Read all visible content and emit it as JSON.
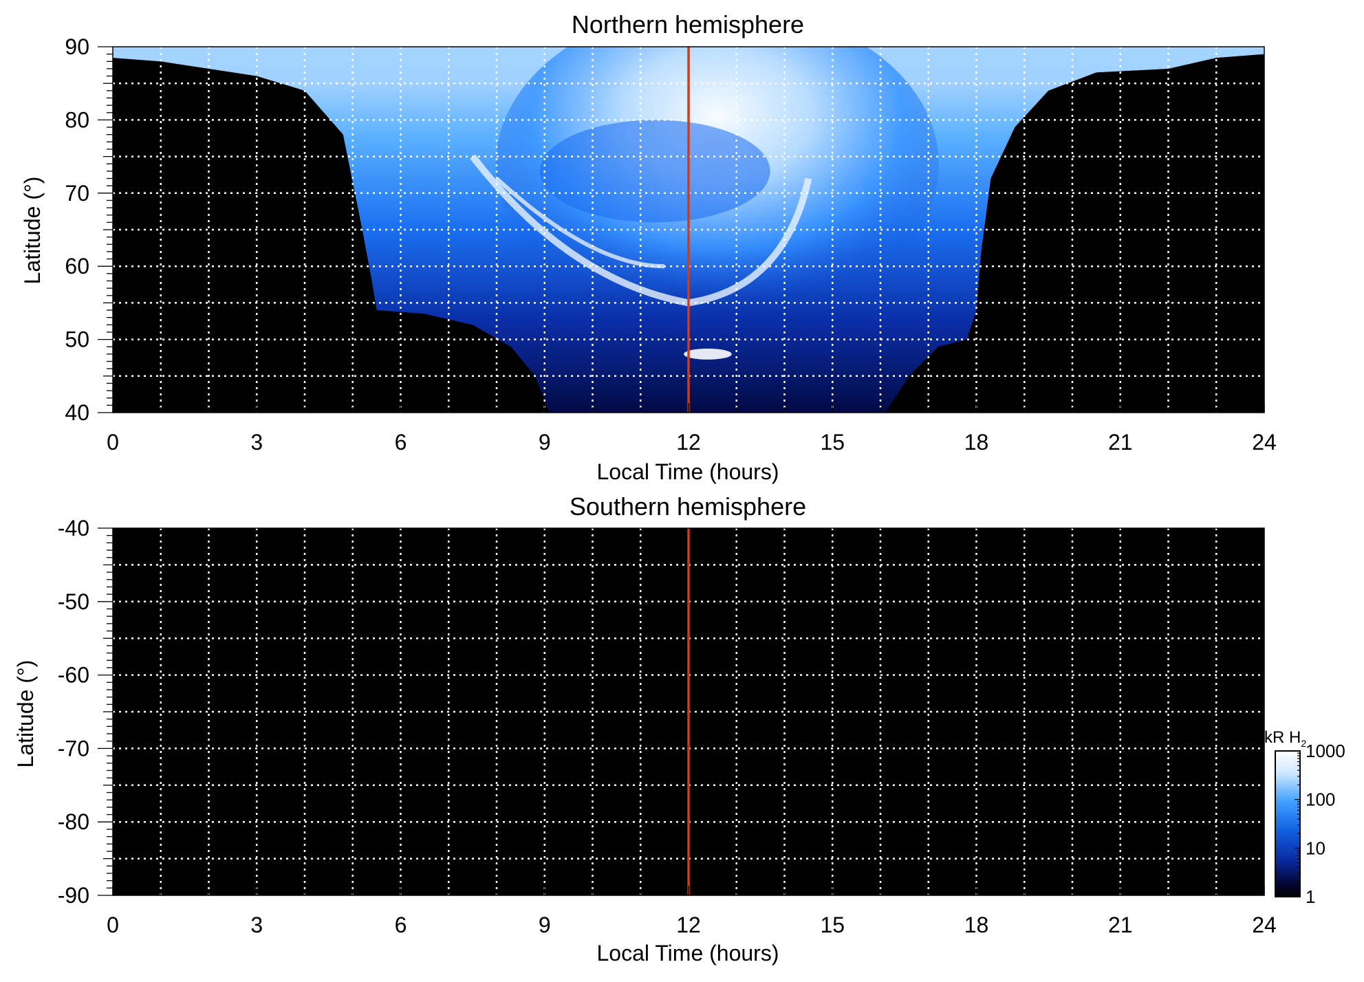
{
  "chart_data": [
    {
      "type": "heatmap",
      "title": "Northern hemisphere",
      "xlabel": "Local Time (hours)",
      "ylabel": "Latitude (°)",
      "xlim": [
        0,
        24
      ],
      "ylim": [
        40,
        90
      ],
      "xticks": [
        "0",
        "3",
        "6",
        "9",
        "12",
        "15",
        "18",
        "21",
        "24"
      ],
      "yticks": [
        "90",
        "80",
        "70",
        "60",
        "50",
        "40"
      ],
      "marker_line_x": 12,
      "marker_color": "#d23a1a",
      "grid": true,
      "coverage_boundary": [
        [
          0,
          88.5
        ],
        [
          1,
          88
        ],
        [
          2,
          87
        ],
        [
          3,
          86
        ],
        [
          4,
          84
        ],
        [
          4.8,
          78
        ],
        [
          5.2,
          65
        ],
        [
          5.4,
          58
        ],
        [
          5.5,
          54
        ],
        [
          6.5,
          53.5
        ],
        [
          7.5,
          52
        ],
        [
          8.3,
          49
        ],
        [
          8.8,
          45
        ],
        [
          9.1,
          40
        ],
        [
          16.1,
          40
        ],
        [
          16.6,
          45
        ],
        [
          17.2,
          49
        ],
        [
          17.8,
          50
        ],
        [
          18,
          54
        ],
        [
          18.1,
          62
        ],
        [
          18.3,
          72
        ],
        [
          18.8,
          79
        ],
        [
          19.5,
          84
        ],
        [
          20.5,
          86.5
        ],
        [
          22,
          87
        ],
        [
          23,
          88.5
        ],
        [
          24,
          89
        ]
      ],
      "features": [
        {
          "label": "dense white emission (dayside, polar)",
          "lt": [
            8,
            15
          ],
          "lat": [
            75,
            89
          ]
        },
        {
          "label": "bright spot near noon",
          "lt": [
            11.5,
            12.8
          ],
          "lat": [
            47.5,
            48.5
          ]
        }
      ]
    },
    {
      "type": "heatmap",
      "title": "Southern hemisphere",
      "xlabel": "Local Time (hours)",
      "ylabel": "Latitude (°)",
      "xlim": [
        0,
        24
      ],
      "ylim": [
        -90,
        -40
      ],
      "xticks": [
        "0",
        "3",
        "6",
        "9",
        "12",
        "15",
        "18",
        "21",
        "24"
      ],
      "yticks": [
        "-40",
        "-50",
        "-60",
        "-70",
        "-80",
        "-90"
      ],
      "marker_line_x": 12,
      "marker_color": "#d23a1a",
      "grid": true,
      "coverage_boundary": []
    }
  ],
  "colorbar": {
    "label": "kR H",
    "label_sub": "2",
    "scale": "log",
    "ticks": [
      "1000",
      "100",
      "10",
      "1"
    ],
    "colors": [
      "#ffffff",
      "#cfe8ff",
      "#3ea0ff",
      "#1060e0",
      "#0a2aa0",
      "#03083a",
      "#000000"
    ]
  }
}
